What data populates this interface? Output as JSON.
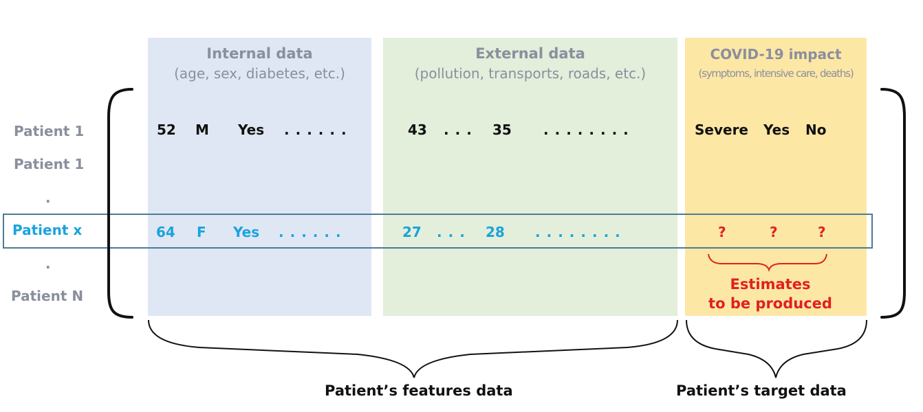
{
  "columns": {
    "internal": {
      "title": "Internal data",
      "subtitle": "(age, sex, diabetes, etc.)",
      "color": "#dfe7f4"
    },
    "external": {
      "title": "External data",
      "subtitle": "(pollution, transports, roads, etc.)",
      "color": "#e3eedb"
    },
    "target": {
      "title": "COVID-19 impact",
      "subtitle": "(symptoms, intensive care, deaths)",
      "color": "#fde7a5"
    }
  },
  "rows": {
    "labels": [
      "Patient 1",
      "Patient 1",
      ".",
      "Patient x",
      ".",
      "Patient N"
    ],
    "patient_1": {
      "age": "52",
      "sex": "M",
      "diabetes": "Yes",
      "dots_a": "......",
      "ext_1": "43",
      "dots_b": "...",
      "ext_2": "35",
      "dots_c": "........",
      "symptoms": "Severe",
      "intensive_care": "Yes",
      "death": "No"
    },
    "patient_x": {
      "age": "64",
      "sex": "F",
      "diabetes": "Yes",
      "dots_a": "......",
      "ext_1": "27",
      "dots_b": "...",
      "ext_2": "28",
      "dots_c": "........",
      "symptoms": "?",
      "intensive_care": "?",
      "death": "?"
    }
  },
  "estimate_note": {
    "line1": "Estimates",
    "line2": "to be produced"
  },
  "captions": {
    "features": "Patient’s features data",
    "target": "Patient’s target data"
  },
  "colors": {
    "highlight_text": "#1aa3dc",
    "estimate": "#e02020",
    "muted": "#8a8f9e",
    "highlight_border": "#4d7a96"
  }
}
